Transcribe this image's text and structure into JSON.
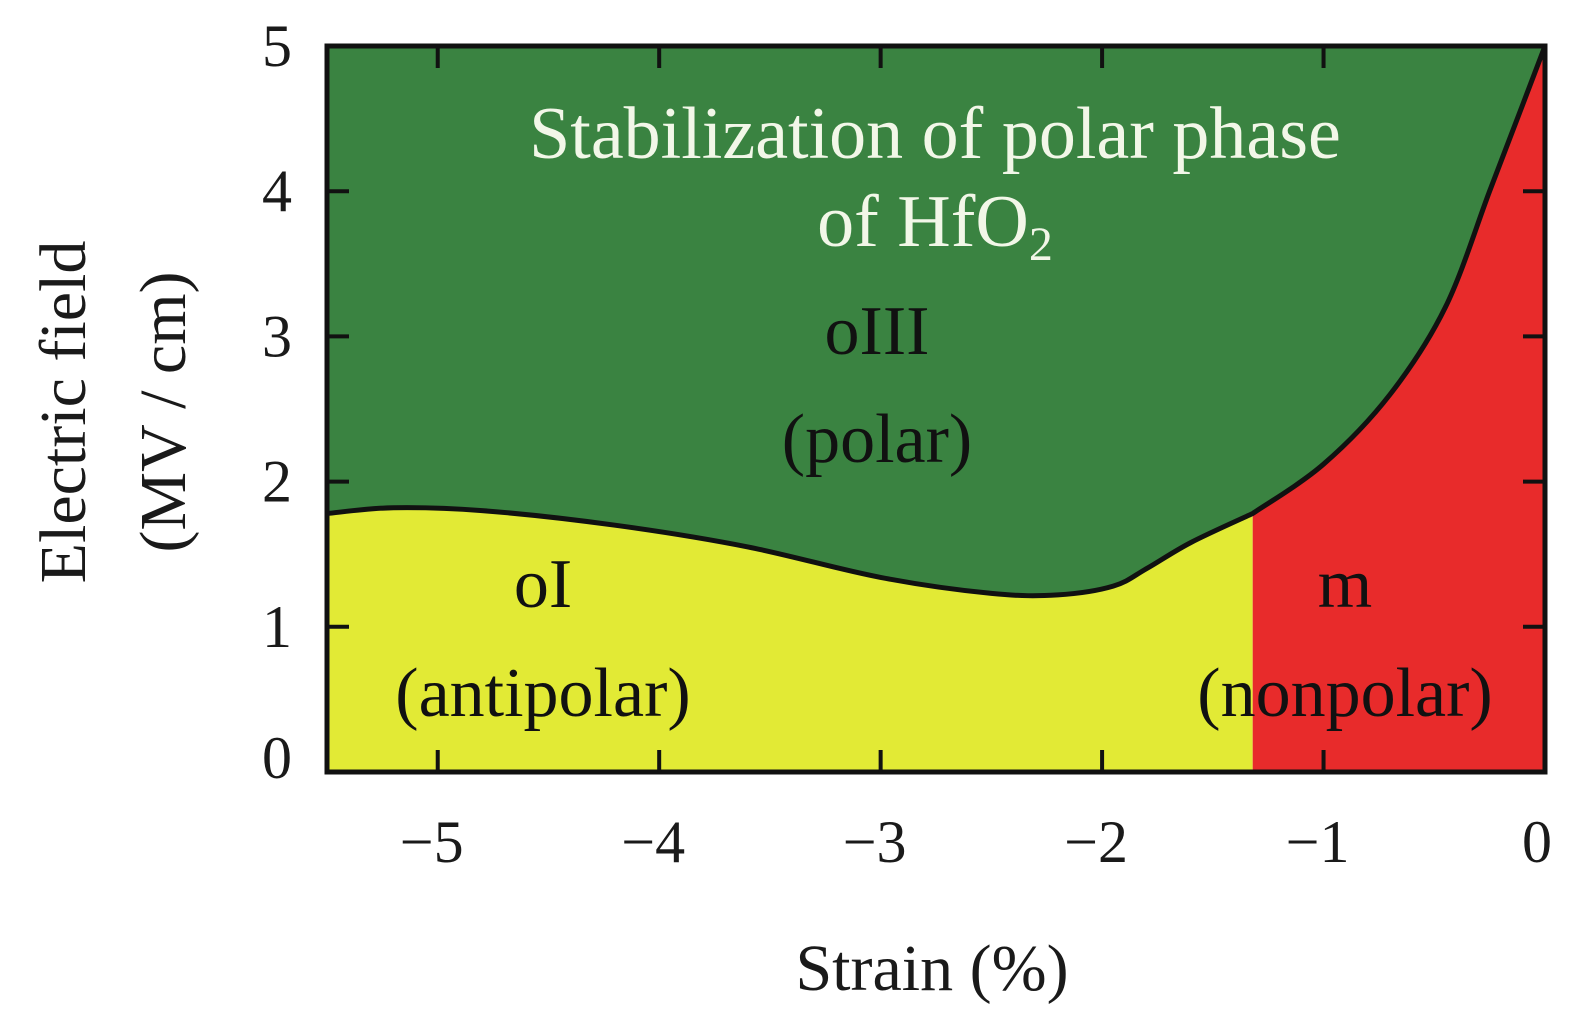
{
  "chart_data": {
    "type": "area",
    "title_lines": [
      "Stabilization of polar phase",
      "of HfO",
      "2"
    ],
    "xlabel": "Strain (%)",
    "ylabel_lines": [
      "Electric field",
      "(MV / cm)"
    ],
    "xlim": [
      -5.5,
      0
    ],
    "ylim": [
      0,
      5
    ],
    "x_ticks": [
      -5,
      -4,
      -3,
      -2,
      -1,
      0
    ],
    "x_tick_labels": [
      "−5",
      "−4",
      "−3",
      "−2",
      "−1",
      "0"
    ],
    "y_ticks": [
      0,
      1,
      2,
      3,
      4,
      5
    ],
    "y_tick_labels": [
      "0",
      "1",
      "2",
      "3",
      "4",
      "5"
    ],
    "grid": false,
    "regions": [
      {
        "name": "oIII",
        "sub": "(polar)",
        "color": "#3a8341"
      },
      {
        "name": "oI",
        "sub": "(antipolar)",
        "color": "#e2ea35"
      },
      {
        "name": "m",
        "sub": "(nonpolar)",
        "color": "#e82b2b"
      }
    ],
    "boundaries": {
      "oI_oIII": [
        {
          "x": -5.5,
          "y": 1.78
        },
        {
          "x": -5.2,
          "y": 1.82
        },
        {
          "x": -4.8,
          "y": 1.8
        },
        {
          "x": -4.2,
          "y": 1.7
        },
        {
          "x": -3.6,
          "y": 1.55
        },
        {
          "x": -3.0,
          "y": 1.34
        },
        {
          "x": -2.5,
          "y": 1.23
        },
        {
          "x": -2.2,
          "y": 1.22
        },
        {
          "x": -1.95,
          "y": 1.28
        },
        {
          "x": -1.8,
          "y": 1.4
        },
        {
          "x": -1.6,
          "y": 1.58
        },
        {
          "x": -1.32,
          "y": 1.78
        }
      ],
      "m_oIII": [
        {
          "x": -1.32,
          "y": 1.78
        },
        {
          "x": -1.0,
          "y": 2.12
        },
        {
          "x": -0.7,
          "y": 2.6
        },
        {
          "x": -0.45,
          "y": 3.2
        },
        {
          "x": -0.25,
          "y": 4.0
        },
        {
          "x": -0.1,
          "y": 4.6
        },
        {
          "x": 0.0,
          "y": 5.0
        }
      ],
      "oI_m_x": -1.32,
      "oIII_top_right": {
        "x": -0.15,
        "y": 5.0
      }
    }
  }
}
